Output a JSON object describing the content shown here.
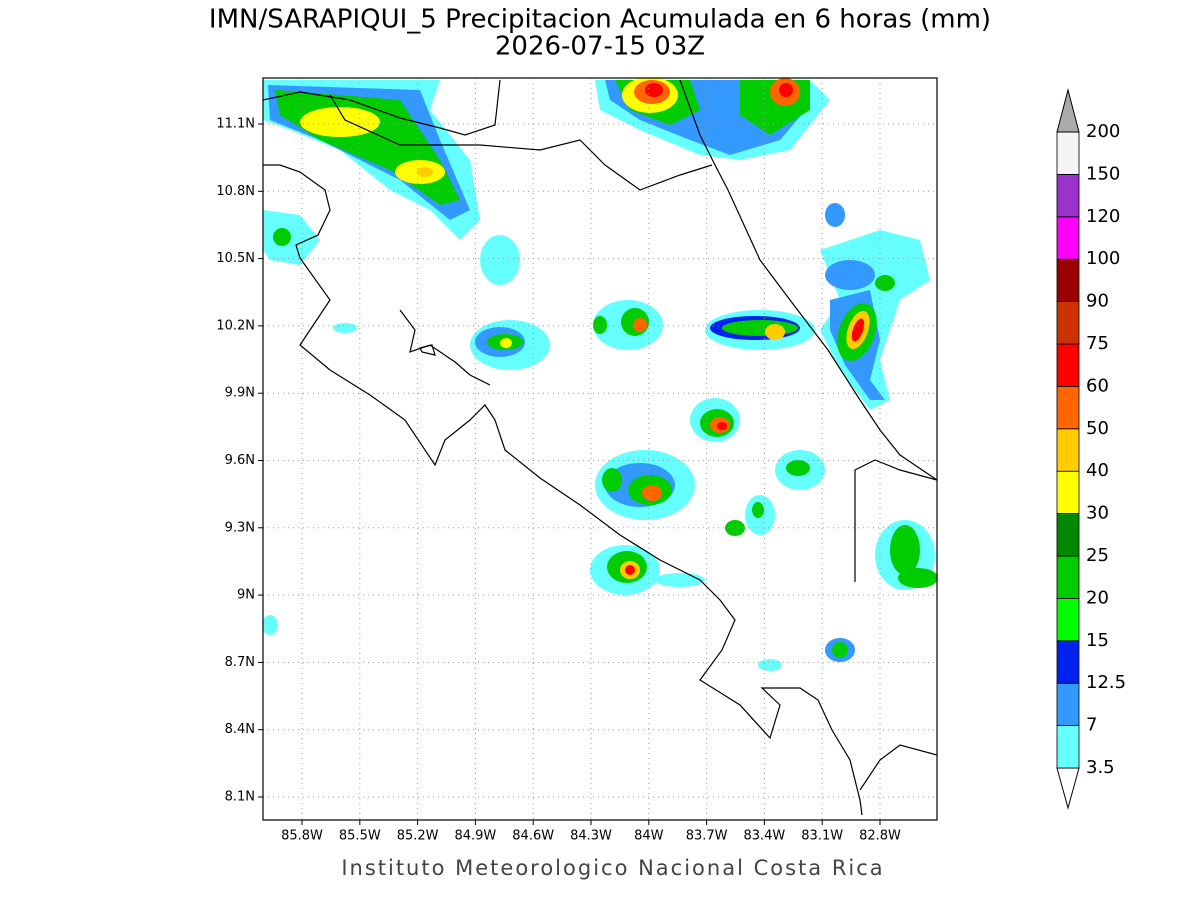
{
  "map": {
    "title": "IMN/SARAPIQUI_5 Precipitacion Acumulada en 6 horas (mm)",
    "subtitle": "2026-07-15 03Z",
    "lon_ticks": [
      "85.8W",
      "85.5W",
      "85.2W",
      "84.9W",
      "84.6W",
      "84.3W",
      "84W",
      "83.7W",
      "83.4W",
      "83.1W",
      "82.8W"
    ],
    "lat_ticks": [
      "11.1N",
      "10.8N",
      "10.5N",
      "10.2N",
      "9.9N",
      "9.6N",
      "9.3N",
      "9N",
      "8.7N",
      "8.4N",
      "8.1N"
    ],
    "colorbar": {
      "labels": [
        "3.5",
        "7",
        "12.5",
        "15",
        "20",
        "25",
        "30",
        "40",
        "50",
        "60",
        "75",
        "90",
        "100",
        "120",
        "150",
        "200"
      ],
      "colors": [
        "#ffffff",
        "#66ffff",
        "#3399ff",
        "#0022ee",
        "#00ff00",
        "#00cc00",
        "#008800",
        "#ffff00",
        "#ffcc00",
        "#ff6600",
        "#ff0000",
        "#cc3300",
        "#990000",
        "#ff00ff",
        "#9933cc",
        "#f5f5f5",
        "#aaaaaa"
      ]
    },
    "footer": "Instituto Meteorologico Nacional Costa Rica"
  }
}
